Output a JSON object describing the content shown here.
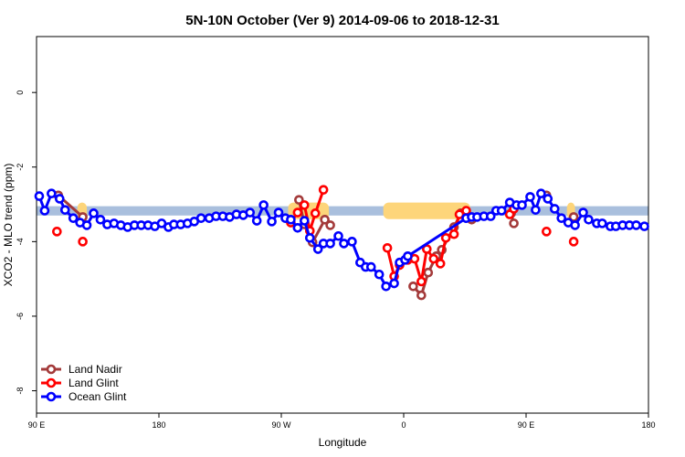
{
  "chart_data": {
    "type": "line",
    "title": "5N-10N October (Ver 9)   2014-09-06 to 2018-12-31",
    "x_label": "Longitude",
    "y_label": "XCO2 - MLO trend (ppm)",
    "xlim": [
      90,
      540
    ],
    "xticks": [
      {
        "value": 90,
        "label": "90 E"
      },
      {
        "value": 180,
        "label": "180"
      },
      {
        "value": 270,
        "label": "90 W"
      },
      {
        "value": 360,
        "label": "0"
      },
      {
        "value": 450,
        "label": "90 E"
      },
      {
        "value": 540,
        "label": "180"
      }
    ],
    "ylim": [
      -8.6,
      1.5
    ],
    "yticks": [
      0,
      -2,
      -4,
      -6,
      -8
    ],
    "legend": "bottom-left",
    "band": {
      "range": [
        -3.3,
        -3.05
      ],
      "color": "#a9bfdd",
      "highlight_color": "#fdd57a",
      "highlights": [
        [
          120,
          127
        ],
        [
          275,
          305
        ],
        [
          345,
          409
        ],
        [
          480,
          486
        ]
      ]
    },
    "series": [
      {
        "name": "Land Nadir",
        "color": "#a33a3a",
        "x": [
          106,
          124,
          null,
          283,
          287,
          293,
          302,
          306,
          null,
          367,
          373,
          378,
          384,
          388,
          397,
          402,
          406,
          410,
          null,
          439,
          441,
          null,
          465,
          null,
          485
        ],
        "values": [
          -2.76,
          -3.34,
          null,
          -2.88,
          -3.54,
          -4.02,
          -3.41,
          -3.56,
          null,
          -5.2,
          -5.44,
          -4.83,
          -4.39,
          -4.22,
          -3.61,
          -3.24,
          -3.2,
          -3.41,
          null,
          -3.24,
          -3.51,
          null,
          -2.76,
          null,
          -3.34
        ]
      },
      {
        "name": "Land Glint",
        "color": "#ff0000",
        "x": [
          105,
          null,
          124,
          null,
          277,
          282,
          287,
          291,
          295,
          301,
          null,
          348,
          353,
          357,
          363,
          368,
          373,
          377,
          382,
          387,
          391,
          397,
          401,
          406,
          null,
          438,
          441,
          null,
          465,
          null,
          485
        ],
        "values": [
          -3.73,
          null,
          -4.0,
          null,
          -3.49,
          -3.22,
          -3.02,
          -3.71,
          -3.24,
          -2.61,
          null,
          -4.17,
          -4.93,
          -4.63,
          -4.49,
          -4.46,
          -5.07,
          -4.2,
          -4.46,
          -4.59,
          -3.9,
          -3.8,
          -3.27,
          -3.17,
          null,
          -3.27,
          -3.12,
          null,
          -3.73,
          null,
          -4.0
        ]
      },
      {
        "name": "Ocean Glint",
        "color": "#0000ff",
        "x": [
          92,
          96,
          101,
          107,
          111,
          117,
          122,
          127,
          132,
          137,
          142,
          147,
          152,
          157,
          162,
          167,
          172,
          177,
          182,
          187,
          191,
          196,
          201,
          206,
          211,
          217,
          222,
          227,
          232,
          237,
          242,
          247,
          252,
          257,
          263,
          268,
          273,
          277,
          282,
          287,
          291,
          297,
          301,
          306,
          312,
          316,
          322,
          328,
          332,
          336,
          342,
          347,
          353,
          357,
          361,
          363,
          406,
          410,
          414,
          419,
          424,
          428,
          432,
          438,
          443,
          447,
          453,
          457,
          461,
          466,
          471,
          476,
          481,
          486,
          492,
          496,
          502,
          506,
          512,
          516,
          521,
          526,
          531,
          537
        ],
        "values": [
          -2.78,
          -3.17,
          -2.71,
          -2.85,
          -3.15,
          -3.37,
          -3.49,
          -3.56,
          -3.24,
          -3.41,
          -3.54,
          -3.51,
          -3.56,
          -3.61,
          -3.56,
          -3.56,
          -3.56,
          -3.59,
          -3.51,
          -3.61,
          -3.54,
          -3.54,
          -3.51,
          -3.46,
          -3.37,
          -3.37,
          -3.32,
          -3.32,
          -3.34,
          -3.27,
          -3.29,
          -3.22,
          -3.44,
          -3.02,
          -3.46,
          -3.22,
          -3.37,
          -3.41,
          -3.63,
          -3.44,
          -3.9,
          -4.2,
          -4.05,
          -4.05,
          -3.85,
          -4.05,
          -4.0,
          -4.56,
          -4.68,
          -4.68,
          -4.88,
          -5.2,
          -5.12,
          -4.56,
          -4.49,
          -4.39,
          -3.37,
          -3.34,
          -3.34,
          -3.32,
          -3.32,
          -3.17,
          -3.17,
          -2.95,
          -3.02,
          -3.02,
          -2.8,
          -3.15,
          -2.71,
          -2.85,
          -3.12,
          -3.37,
          -3.49,
          -3.56,
          -3.22,
          -3.41,
          -3.51,
          -3.51,
          -3.59,
          -3.59,
          -3.56,
          -3.56,
          -3.56,
          -3.59
        ]
      }
    ]
  }
}
